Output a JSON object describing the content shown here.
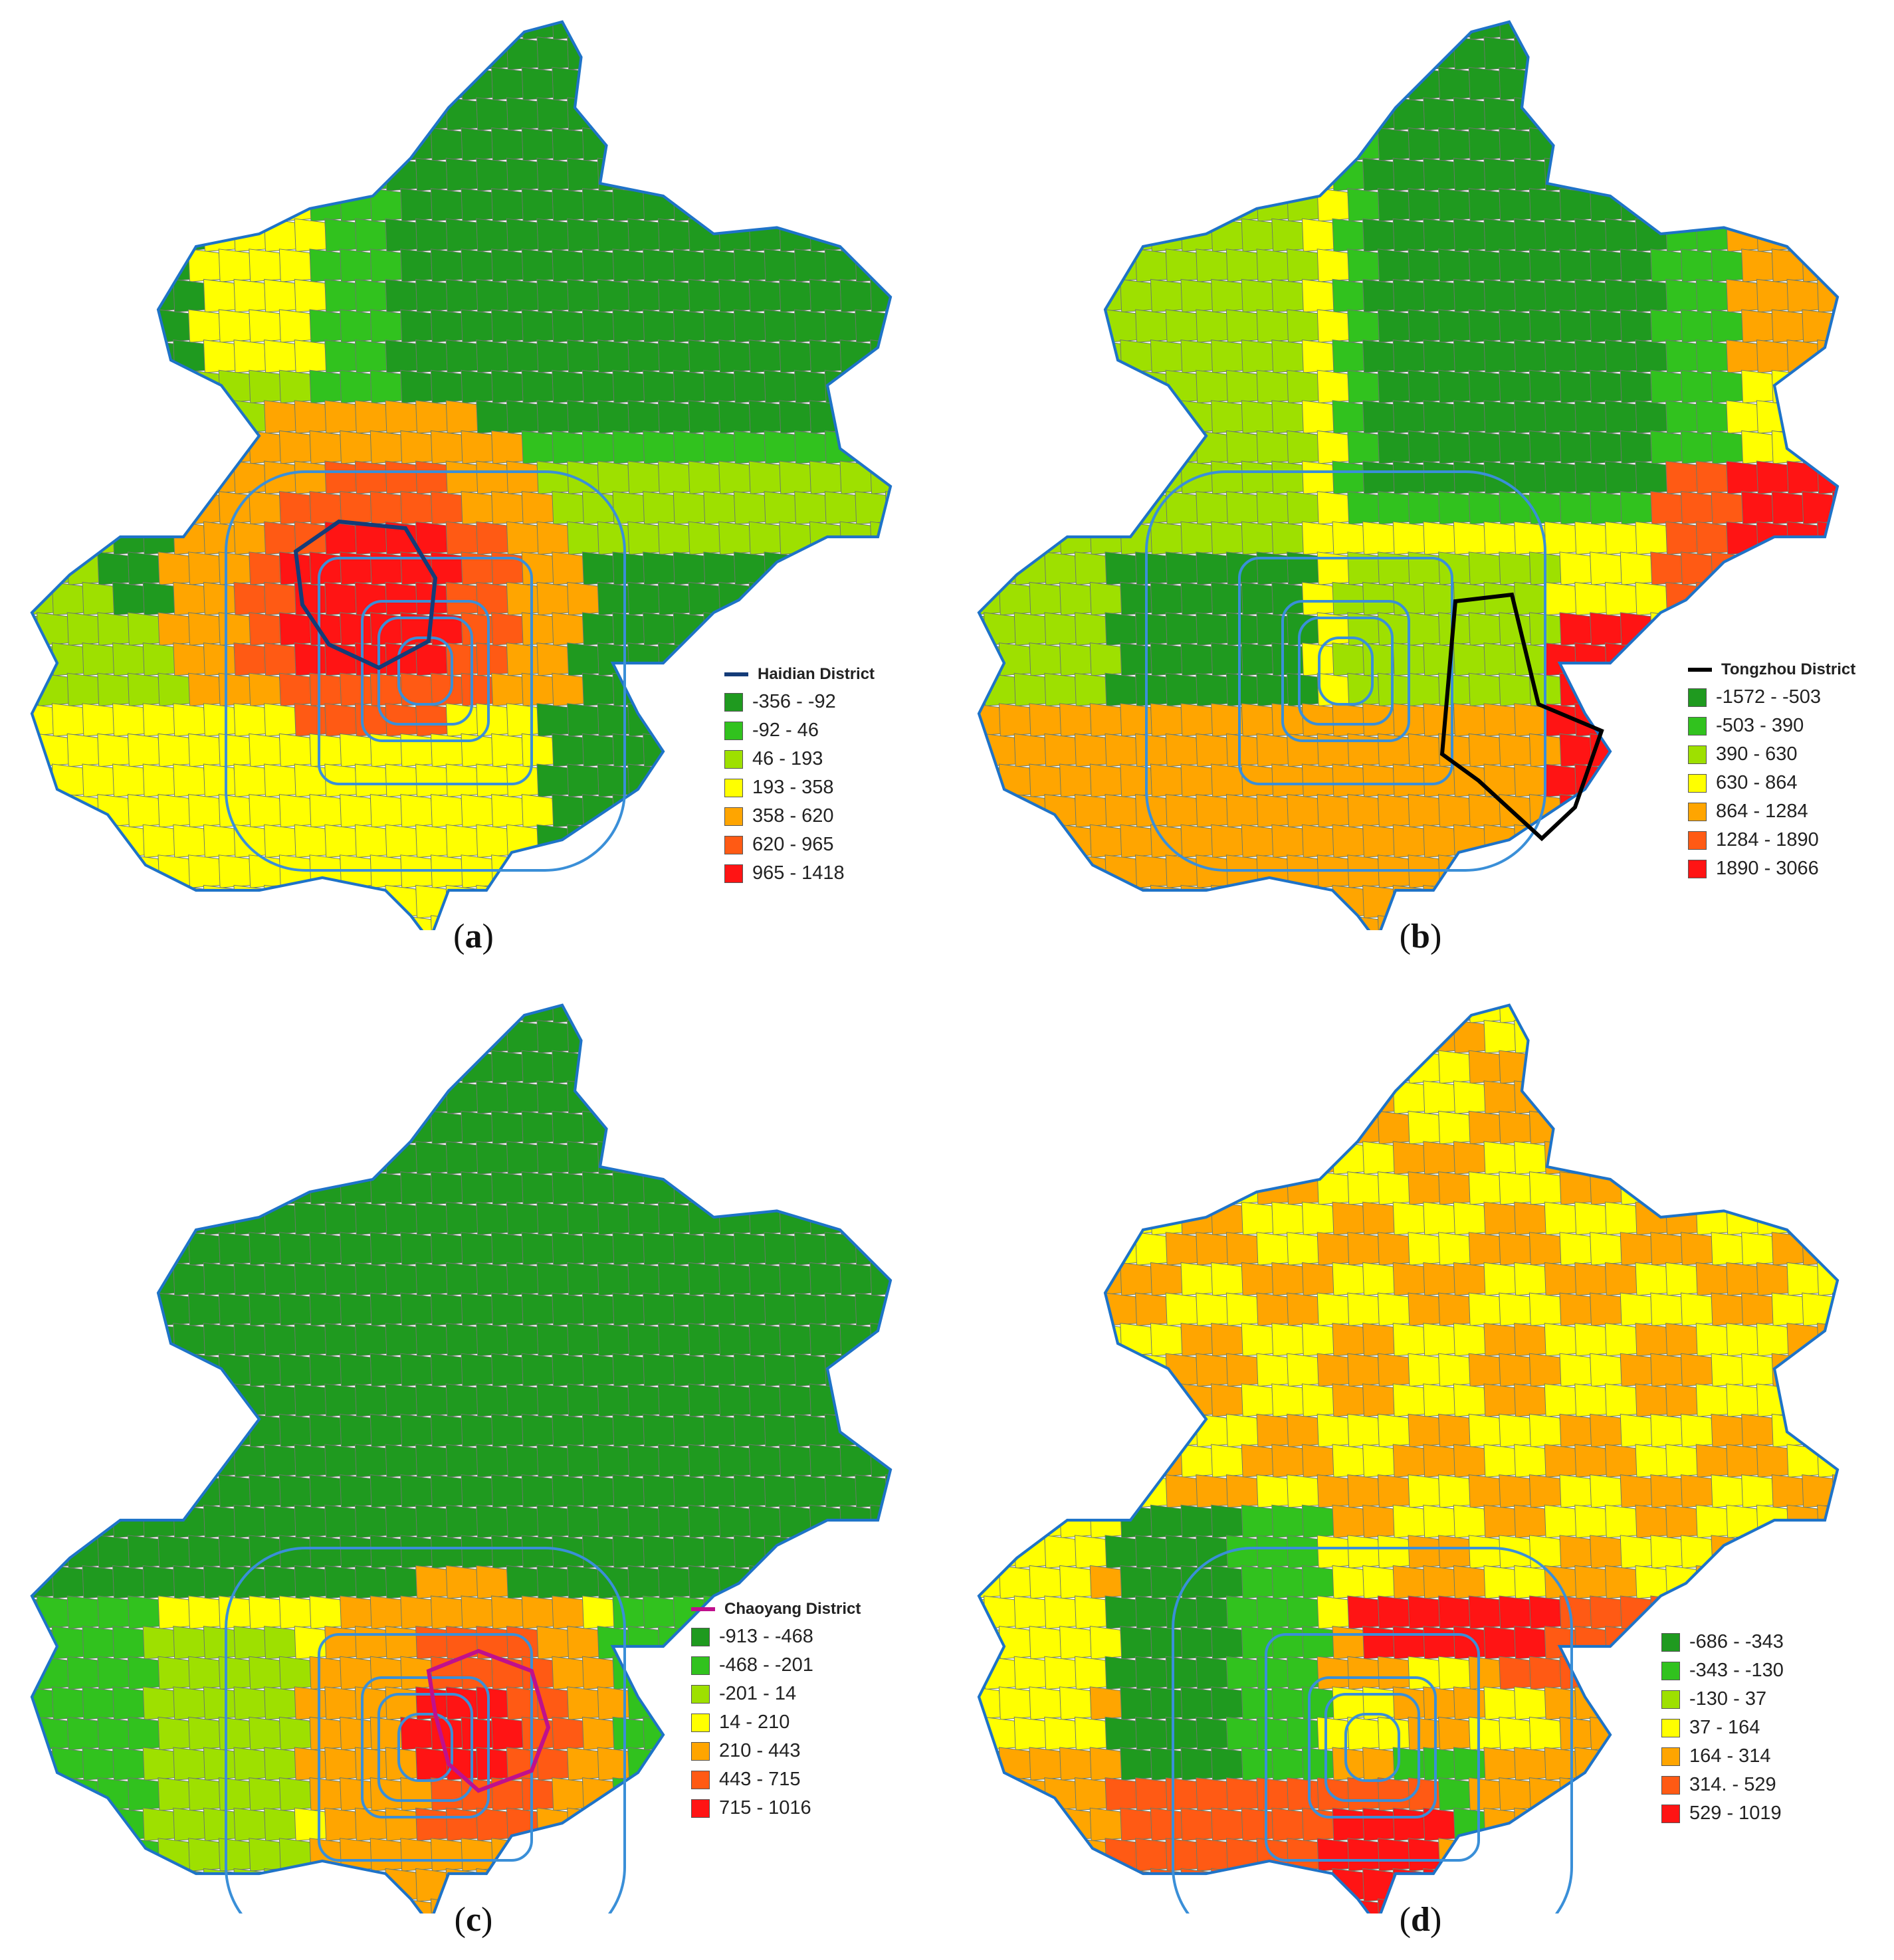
{
  "colors": {
    "class1": "#1f9a1f",
    "class2": "#31c21e",
    "class3": "#9ee000",
    "class4": "#ffff00",
    "class5": "#ffa500",
    "class6": "#ff5a14",
    "class7": "#ff1414",
    "boundary": "#1e73c8",
    "ring": "#3a8fd8"
  },
  "panels": [
    {
      "caption_open": "(",
      "caption_letter": "a",
      "caption_close": ")",
      "legend_title": "Haidian District",
      "highlight_color": "#143c78",
      "classes": [
        "-356 - -92",
        "-92 - 46",
        "46 - 193",
        "193 - 358",
        "358 - 620",
        "620 - 965",
        "965 - 1418"
      ]
    },
    {
      "caption_open": "(",
      "caption_letter": "b",
      "caption_close": ")",
      "legend_title": "Tongzhou District",
      "highlight_color": "#000000",
      "classes": [
        "-1572 - -503",
        "-503 - 390",
        "390 - 630",
        "630 - 864",
        "864 - 1284",
        "1284 - 1890",
        "1890 - 3066"
      ]
    },
    {
      "caption_open": "(",
      "caption_letter": "c",
      "caption_close": ")",
      "legend_title": "Chaoyang District",
      "highlight_color": "#c0108c",
      "classes": [
        "-913 - -468",
        "-468 - -201",
        "-201 - 14",
        "14 - 210",
        "210 - 443",
        "443 - 715",
        "715 - 1016"
      ]
    },
    {
      "caption_open": "(",
      "caption_letter": "d",
      "caption_close": ")",
      "legend_title": "",
      "highlight_color": "",
      "classes": [
        "-686 - -343",
        "-343 - -130",
        "-130 - 37",
        "37 - 164",
        "164 - 314",
        "314. - 529",
        "529 - 1019"
      ]
    }
  ]
}
